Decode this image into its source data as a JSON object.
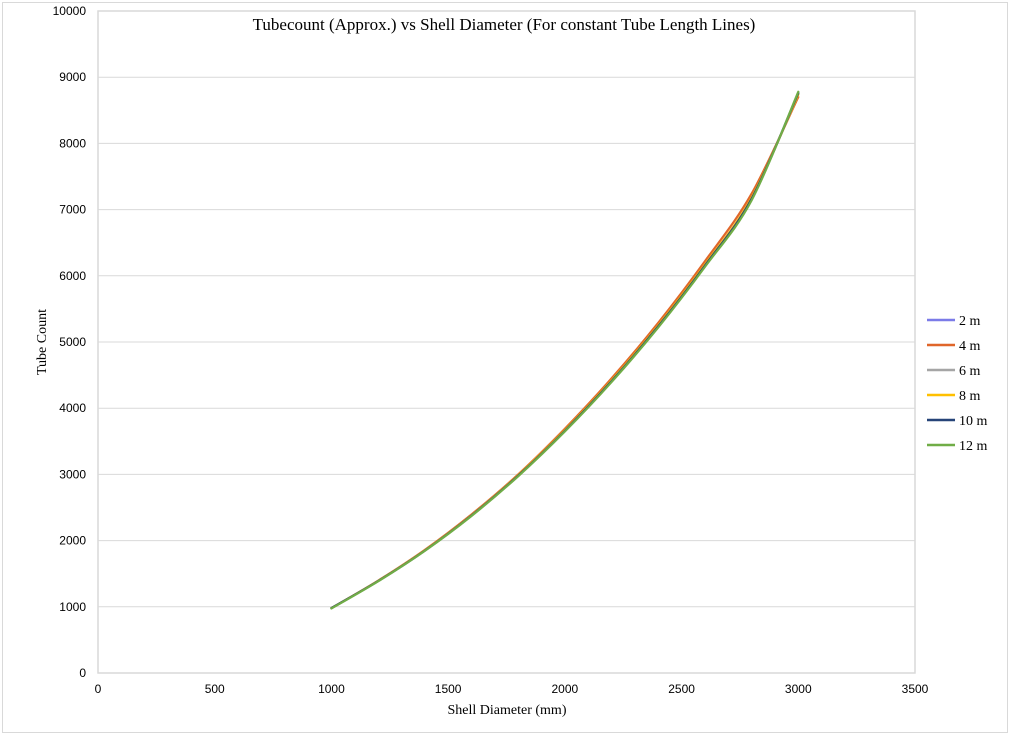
{
  "chart_data": {
    "type": "line",
    "title": "Tubecount (Approx.) vs Shell Diameter (For constant Tube Length Lines)",
    "xlabel": "Shell Diameter (mm)",
    "ylabel": "Tube Count",
    "xlim": [
      0,
      3500
    ],
    "ylim": [
      0,
      10000
    ],
    "xticks": [
      0,
      500,
      1000,
      1500,
      2000,
      2500,
      3000,
      3500
    ],
    "yticks": [
      0,
      1000,
      2000,
      3000,
      4000,
      5000,
      6000,
      7000,
      8000,
      9000,
      10000
    ],
    "grid": true,
    "legend_position": "right",
    "x": [
      1000,
      1200,
      1400,
      1600,
      1800,
      2000,
      2200,
      2400,
      2600,
      2800,
      3000
    ],
    "series": [
      {
        "name": "2 m",
        "color": "#7b7be8",
        "values": [
          980,
          1390,
          1850,
          2380,
          2980,
          3660,
          4410,
          5240,
          6160,
          7170,
          8760
        ]
      },
      {
        "name": "4 m",
        "color": "#e0662a",
        "values": [
          980,
          1395,
          1860,
          2395,
          3000,
          3690,
          4450,
          5290,
          6220,
          7240,
          8700
        ]
      },
      {
        "name": "6 m",
        "color": "#a5a5a5",
        "values": [
          980,
          1390,
          1850,
          2380,
          2985,
          3665,
          4415,
          5245,
          6165,
          7175,
          8740
        ]
      },
      {
        "name": "8 m",
        "color": "#ffc000",
        "values": [
          980,
          1390,
          1852,
          2382,
          2988,
          3668,
          4420,
          5250,
          6170,
          7180,
          8740
        ]
      },
      {
        "name": "10 m",
        "color": "#264478",
        "values": [
          980,
          1388,
          1848,
          2378,
          2980,
          3658,
          4408,
          5236,
          6154,
          7164,
          8760
        ]
      },
      {
        "name": "12 m",
        "color": "#70ad47",
        "values": [
          975,
          1385,
          1845,
          2372,
          2972,
          3648,
          4395,
          5220,
          6135,
          7140,
          8780
        ]
      }
    ]
  }
}
